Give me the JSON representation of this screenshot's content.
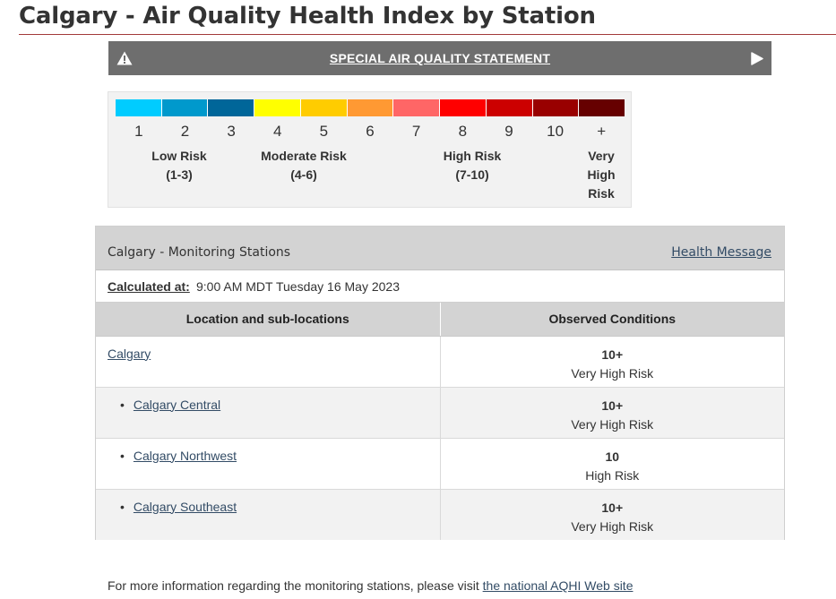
{
  "page": {
    "title": "Calgary - Air Quality Health Index by Station"
  },
  "banner": {
    "label": "SPECIAL AIR QUALITY STATEMENT",
    "left_icon": "warning-triangle-icon",
    "right_icon": "play-triangle-icon"
  },
  "scale": {
    "colors": [
      "#00ccff",
      "#0099cc",
      "#006699",
      "#ffff00",
      "#ffcc00",
      "#ff9933",
      "#ff6666",
      "#ff0000",
      "#cc0000",
      "#990000",
      "#660000"
    ],
    "numbers": [
      "1",
      "2",
      "3",
      "4",
      "5",
      "6",
      "7",
      "8",
      "9",
      "10",
      "+"
    ],
    "risk_low": {
      "line1": "Low Risk",
      "line2": "(1-3)"
    },
    "risk_moderate": {
      "line1": "Moderate Risk",
      "line2": "(4-6)"
    },
    "risk_high": {
      "line1": "High Risk",
      "line2": "(7-10)"
    },
    "risk_very_high": {
      "line1": "Very",
      "line2": "High",
      "line3": "Risk"
    }
  },
  "panel": {
    "title": "Calgary - Monitoring Stations",
    "health_message_link": "Health Message",
    "calculated_label": "Calculated at:",
    "calculated_value": "9:00 AM MDT Tuesday 16 May 2023",
    "columns": [
      "Location and sub-locations",
      "Observed Conditions"
    ],
    "rows": [
      {
        "location": "Calgary",
        "sub": false,
        "value": "10+",
        "risk": "Very High Risk"
      },
      {
        "location": "Calgary Central",
        "sub": true,
        "value": "10+",
        "risk": "Very High Risk"
      },
      {
        "location": "Calgary Northwest",
        "sub": true,
        "value": "10",
        "risk": "High Risk"
      },
      {
        "location": "Calgary Southeast",
        "sub": true,
        "value": "10+",
        "risk": "Very High Risk"
      }
    ]
  },
  "footer": {
    "text": "For more information regarding the monitoring stations, please visit ",
    "link": "the national AQHI Web site"
  }
}
